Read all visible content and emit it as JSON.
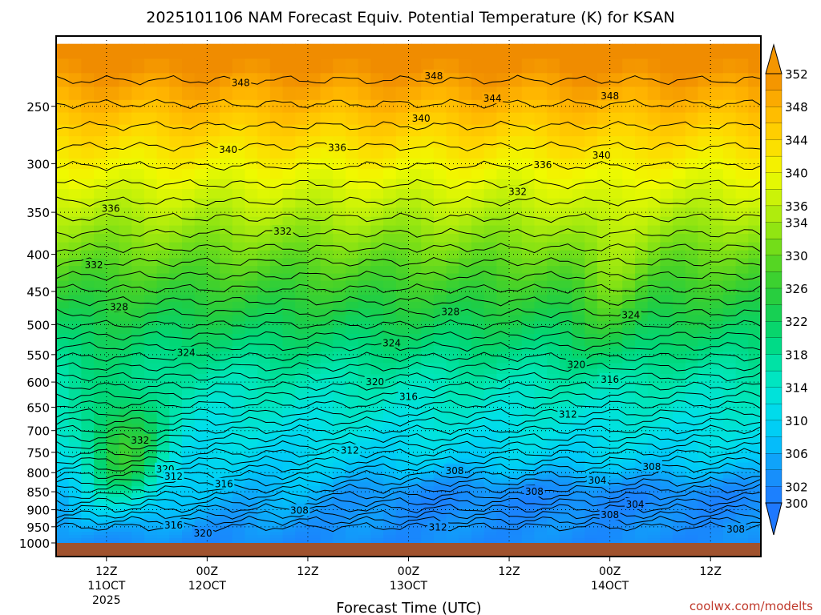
{
  "chart_data": {
    "type": "heatmap",
    "title": "2025101106 NAM Forecast Equiv. Potential Temperature (K) for KSAN",
    "xlabel": "Forecast Time (UTC)",
    "ylabel": "",
    "credit": "coolwx.com/modelts",
    "y_scale": "log",
    "y_inverted": true,
    "ylim": [
      1000,
      200
    ],
    "yticks": [
      250,
      300,
      350,
      400,
      450,
      500,
      550,
      600,
      650,
      700,
      750,
      800,
      850,
      900,
      950,
      1000
    ],
    "x_range_hours": [
      0,
      84
    ],
    "xticks": [
      {
        "hour": 6,
        "lines": [
          "12Z",
          "11OCT",
          "2025"
        ]
      },
      {
        "hour": 18,
        "lines": [
          "00Z",
          "12OCT"
        ]
      },
      {
        "hour": 30,
        "lines": [
          "12Z"
        ]
      },
      {
        "hour": 42,
        "lines": [
          "00Z",
          "13OCT"
        ]
      },
      {
        "hour": 54,
        "lines": [
          "12Z"
        ]
      },
      {
        "hour": 66,
        "lines": [
          "00Z",
          "14OCT"
        ]
      },
      {
        "hour": 78,
        "lines": [
          "12Z"
        ]
      }
    ],
    "colorbar": {
      "levels": [
        300,
        302,
        304,
        306,
        308,
        310,
        312,
        314,
        316,
        318,
        320,
        322,
        324,
        326,
        328,
        330,
        332,
        334,
        336,
        338,
        340,
        342,
        344,
        346,
        348,
        350,
        352
      ],
      "tick_labels": [
        352,
        348,
        344,
        340,
        336,
        334,
        330,
        326,
        322,
        318,
        314,
        310,
        306,
        302,
        300
      ]
    },
    "contour_labels": [
      {
        "value": 348,
        "hour": 22,
        "p": 232
      },
      {
        "value": 348,
        "hour": 45,
        "p": 227
      },
      {
        "value": 344,
        "hour": 52,
        "p": 244
      },
      {
        "value": 348,
        "hour": 66,
        "p": 242
      },
      {
        "value": 340,
        "hour": 43.5,
        "p": 260
      },
      {
        "value": 340,
        "hour": 20.5,
        "p": 287
      },
      {
        "value": 336,
        "hour": 33.5,
        "p": 285
      },
      {
        "value": 340,
        "hour": 65,
        "p": 292
      },
      {
        "value": 336,
        "hour": 58,
        "p": 301
      },
      {
        "value": 332,
        "hour": 55,
        "p": 328
      },
      {
        "value": 336,
        "hour": 6.5,
        "p": 346
      },
      {
        "value": 332,
        "hour": 27,
        "p": 372
      },
      {
        "value": 332,
        "hour": 4.5,
        "p": 414
      },
      {
        "value": 328,
        "hour": 7.5,
        "p": 473
      },
      {
        "value": 328,
        "hour": 47,
        "p": 480
      },
      {
        "value": 324,
        "hour": 68.5,
        "p": 485
      },
      {
        "value": 324,
        "hour": 40,
        "p": 530
      },
      {
        "value": 324,
        "hour": 15.5,
        "p": 547
      },
      {
        "value": 320,
        "hour": 62,
        "p": 568
      },
      {
        "value": 320,
        "hour": 38,
        "p": 600
      },
      {
        "value": 316,
        "hour": 66,
        "p": 595
      },
      {
        "value": 316,
        "hour": 42,
        "p": 629
      },
      {
        "value": 312,
        "hour": 61,
        "p": 665
      },
      {
        "value": 332,
        "hour": 10,
        "p": 722
      },
      {
        "value": 312,
        "hour": 35,
        "p": 746
      },
      {
        "value": 308,
        "hour": 47.5,
        "p": 795
      },
      {
        "value": 308,
        "hour": 71,
        "p": 785
      },
      {
        "value": 320,
        "hour": 13,
        "p": 791
      },
      {
        "value": 312,
        "hour": 14,
        "p": 810
      },
      {
        "value": 304,
        "hour": 64.5,
        "p": 820
      },
      {
        "value": 316,
        "hour": 20,
        "p": 830
      },
      {
        "value": 308,
        "hour": 57,
        "p": 850
      },
      {
        "value": 304,
        "hour": 69,
        "p": 885
      },
      {
        "value": 308,
        "hour": 29,
        "p": 902
      },
      {
        "value": 308,
        "hour": 66,
        "p": 915
      },
      {
        "value": 316,
        "hour": 14,
        "p": 945
      },
      {
        "value": 312,
        "hour": 45.5,
        "p": 952
      },
      {
        "value": 308,
        "hour": 81,
        "p": 958
      },
      {
        "value": 320,
        "hour": 17.5,
        "p": 970
      }
    ],
    "colors": {
      "ground": "#a0522d",
      "background": "#ffffff",
      "credit": "#c0392b"
    }
  }
}
